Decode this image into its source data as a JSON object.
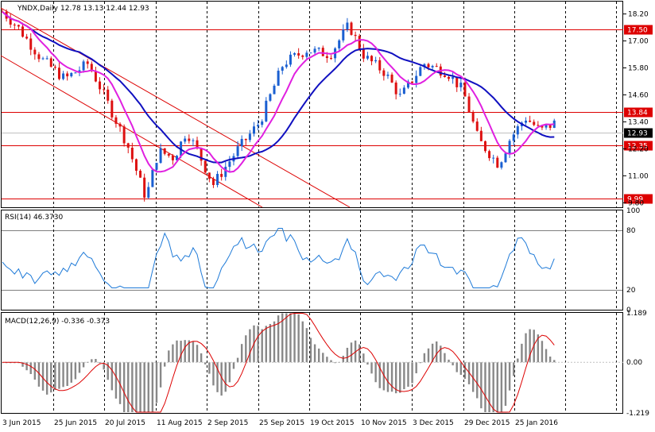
{
  "header": {
    "symbol_label": "YNDX,Daily",
    "ohlc": "12.78 13.13 12.44 12.93"
  },
  "chart_data": [
    {
      "type": "candlestick",
      "name": "price",
      "yticks": [
        "18.20",
        "17.00",
        "15.80",
        "14.60",
        "13.40",
        "12.20",
        "11.00",
        "9.80"
      ],
      "ytick_values": [
        18.2,
        17.0,
        15.8,
        14.6,
        13.4,
        12.2,
        11.0,
        9.8
      ],
      "ylim": [
        9.6,
        18.75
      ],
      "hlines": [
        {
          "value": 17.5,
          "label": "17.50"
        },
        {
          "value": 13.84,
          "label": "13.84"
        },
        {
          "value": 12.35,
          "label": "12.35"
        },
        {
          "value": 9.99,
          "label": "9.99"
        }
      ],
      "current_price": {
        "value": 12.93,
        "label": "12.93"
      },
      "colors": {
        "up": "#1a5fd1",
        "down": "#dd1111",
        "ma_fast": "#e020e0",
        "ma_slow": "#1010c0",
        "hline": "#dd0000"
      }
    },
    {
      "type": "line",
      "name": "RSI(14)",
      "title": "RSI(14) 46.3730",
      "ylim": [
        0,
        100
      ],
      "yticks": [
        "100",
        "80",
        "20",
        "0"
      ],
      "ytick_values": [
        100,
        80,
        20,
        0
      ],
      "levels": [
        80,
        20
      ],
      "color": "#1e7ad8"
    },
    {
      "type": "bar",
      "name": "MACD(12,26,9)",
      "title": "MACD(12,26,9) -0.336 -0.373",
      "ylim": [
        -1.219,
        1.189
      ],
      "yticks": [
        "1.189",
        "0.00",
        "-1.219"
      ],
      "ytick_values": [
        1.189,
        0,
        -1.219
      ],
      "bar_color": "#888888",
      "signal_color": "#dd0000"
    }
  ],
  "x_axis": {
    "labels": [
      "3 Jun 2015",
      "25 Jun 2015",
      "20 Jul 2015",
      "11 Aug 2015",
      "2 Sep 2015",
      "25 Sep 2015",
      "19 Oct 2015",
      "10 Nov 2015",
      "3 Dec 2015",
      "29 Dec 2015",
      "25 Jan 2016"
    ]
  }
}
